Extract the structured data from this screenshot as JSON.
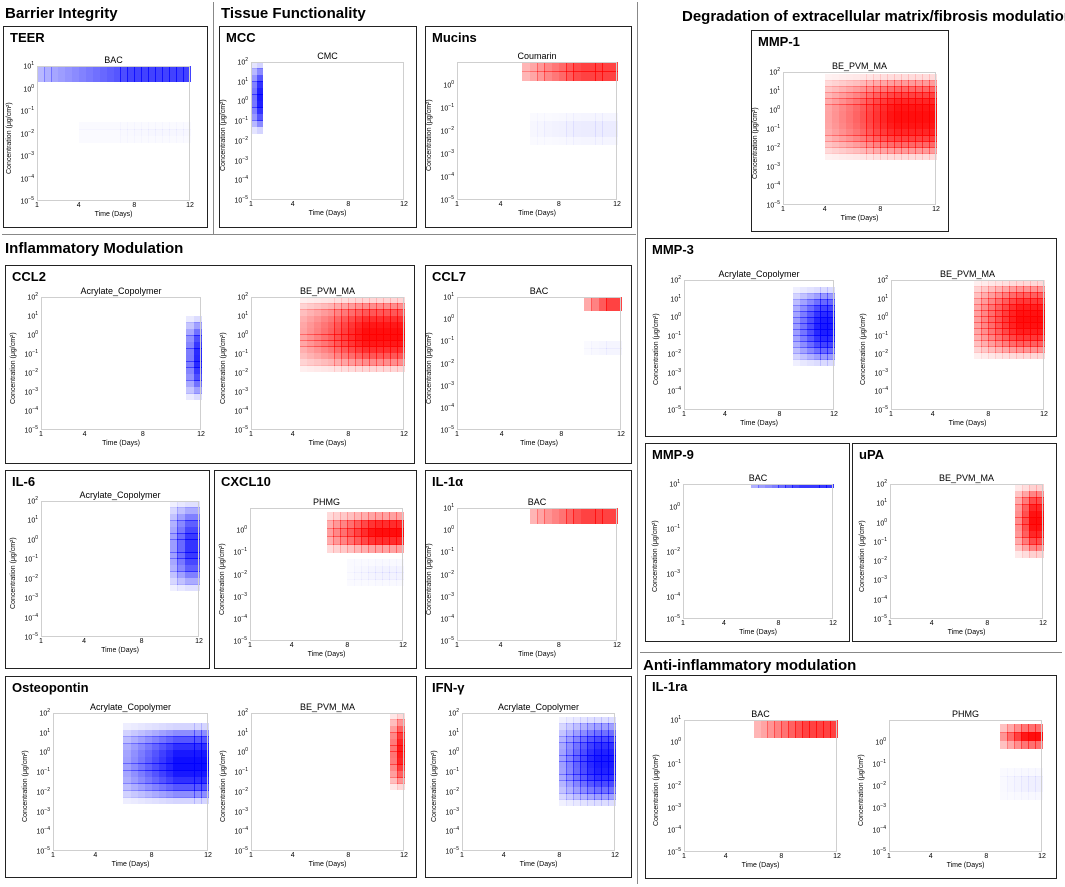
{
  "sections": [
    {
      "id": "barrier",
      "label": "Barrier Integrity"
    },
    {
      "id": "tissue",
      "label": "Tissue Functionality"
    },
    {
      "id": "ecm",
      "label": "Degradation of extracellular matrix/fibrosis modulation"
    },
    {
      "id": "inflam",
      "label": "Inflammatory Modulation"
    },
    {
      "id": "anti",
      "label": "Anti-inflammatory modulation"
    }
  ],
  "boxes": [
    {
      "id": "teer",
      "label": "TEER"
    },
    {
      "id": "mcc",
      "label": "MCC"
    },
    {
      "id": "mucins",
      "label": "Mucins"
    },
    {
      "id": "mmp1",
      "label": "MMP-1"
    },
    {
      "id": "ccl2",
      "label": "CCL2"
    },
    {
      "id": "ccl7",
      "label": "CCL7"
    },
    {
      "id": "mmp3",
      "label": "MMP-3"
    },
    {
      "id": "il6",
      "label": "IL-6"
    },
    {
      "id": "cxcl10",
      "label": "CXCL10"
    },
    {
      "id": "il1a",
      "label": "IL-1α"
    },
    {
      "id": "mmp9",
      "label": "MMP-9"
    },
    {
      "id": "upa",
      "label": "uPA"
    },
    {
      "id": "osteo",
      "label": "Osteopontin"
    },
    {
      "id": "ifng",
      "label": "IFN-γ"
    },
    {
      "id": "il1ra",
      "label": "IL-1ra"
    }
  ],
  "axis_text": {
    "xlabel": "Time (Days)",
    "ylabel": "Concentration (μg/cm²)",
    "x_ticks": [
      "1",
      "4",
      "8",
      "12"
    ]
  },
  "colors": {
    "red": "#ff0000",
    "blue": "#0000ff"
  },
  "chart_data": [
    {
      "type": "heatmap",
      "panel": "TEER",
      "title": "BAC",
      "xlim": [
        1,
        12
      ],
      "ylim_log10": [
        -5,
        1
      ],
      "y_ticks_exp": [
        -5,
        -4,
        -3,
        -2,
        -1,
        0,
        1
      ],
      "regions": [
        {
          "color": "blue",
          "x": [
            1,
            12
          ],
          "y_log10": [
            0.3,
            1
          ],
          "intensity": 0.95
        },
        {
          "color": "blue",
          "x": [
            4,
            12
          ],
          "y_log10": [
            -2.4,
            -1.5
          ],
          "intensity": 0.03
        }
      ]
    },
    {
      "type": "heatmap",
      "panel": "MCC",
      "title": "CMC",
      "xlim": [
        1,
        12
      ],
      "ylim_log10": [
        -5,
        2
      ],
      "y_ticks_exp": [
        -5,
        -4,
        -3,
        -2,
        -1,
        0,
        1,
        2
      ],
      "regions": [
        {
          "color": "blue",
          "x": [
            1,
            1.8
          ],
          "y_log10": [
            -1.6,
            2
          ],
          "intensity": 0.9
        }
      ]
    },
    {
      "type": "heatmap",
      "panel": "Mucins",
      "title": "Coumarin",
      "xlim": [
        1,
        12
      ],
      "ylim_log10": [
        -5,
        1
      ],
      "y_ticks_exp": [
        -5,
        -4,
        -3,
        -2,
        -1,
        0
      ],
      "regions": [
        {
          "color": "red",
          "x": [
            5.5,
            12
          ],
          "y_log10": [
            0.2,
            1
          ],
          "intensity": 0.95
        },
        {
          "color": "blue",
          "x": [
            6,
            12
          ],
          "y_log10": [
            -2.6,
            -1.2
          ],
          "intensity": 0.08
        }
      ]
    },
    {
      "type": "heatmap",
      "panel": "MMP-1",
      "title": "BE_PVM_MA",
      "xlim": [
        1,
        12
      ],
      "ylim_log10": [
        -5,
        2
      ],
      "y_ticks_exp": [
        -5,
        -4,
        -3,
        -2,
        -1,
        0,
        1,
        2
      ],
      "regions": [
        {
          "color": "red",
          "x": [
            4,
            12
          ],
          "y_log10": [
            -2.6,
            1.9
          ],
          "intensity": 0.95
        }
      ]
    },
    {
      "type": "heatmap",
      "panel": "CCL2",
      "title": "Acrylate_Copolymer",
      "xlim": [
        1,
        12
      ],
      "ylim_log10": [
        -5,
        2
      ],
      "y_ticks_exp": [
        -5,
        -4,
        -3,
        -2,
        -1,
        0,
        1,
        2
      ],
      "regions": [
        {
          "color": "blue",
          "x": [
            11,
            12
          ],
          "y_log10": [
            -3.4,
            1
          ],
          "intensity": 0.85
        }
      ]
    },
    {
      "type": "heatmap",
      "panel": "CCL2",
      "title": "BE_PVM_MA",
      "xlim": [
        1,
        12
      ],
      "ylim_log10": [
        -5,
        2
      ],
      "y_ticks_exp": [
        -5,
        -4,
        -3,
        -2,
        -1,
        0,
        1,
        2
      ],
      "regions": [
        {
          "color": "red",
          "x": [
            4.5,
            12
          ],
          "y_log10": [
            -1.9,
            2
          ],
          "intensity": 0.95
        }
      ]
    },
    {
      "type": "heatmap",
      "panel": "CCL7",
      "title": "BAC",
      "xlim": [
        1,
        12
      ],
      "ylim_log10": [
        -5,
        1
      ],
      "y_ticks_exp": [
        -5,
        -4,
        -3,
        -2,
        -1,
        0,
        1
      ],
      "regions": [
        {
          "color": "red",
          "x": [
            9.5,
            12
          ],
          "y_log10": [
            0.4,
            1
          ],
          "intensity": 0.95
        },
        {
          "color": "blue",
          "x": [
            9.5,
            12
          ],
          "y_log10": [
            -1.6,
            -1
          ],
          "intensity": 0.05
        }
      ]
    },
    {
      "type": "heatmap",
      "panel": "MMP-3",
      "title": "Acrylate_Copolymer",
      "xlim": [
        1,
        12
      ],
      "ylim_log10": [
        -5,
        2
      ],
      "y_ticks_exp": [
        -5,
        -4,
        -3,
        -2,
        -1,
        0,
        1,
        2
      ],
      "regions": [
        {
          "color": "blue",
          "x": [
            9,
            12
          ],
          "y_log10": [
            -2.6,
            1.6
          ],
          "intensity": 0.9
        }
      ]
    },
    {
      "type": "heatmap",
      "panel": "MMP-3",
      "title": "BE_PVM_MA",
      "xlim": [
        1,
        12
      ],
      "ylim_log10": [
        -5,
        2
      ],
      "y_ticks_exp": [
        -5,
        -4,
        -3,
        -2,
        -1,
        0,
        1,
        2
      ],
      "regions": [
        {
          "color": "red",
          "x": [
            7,
            12
          ],
          "y_log10": [
            -2.2,
            2
          ],
          "intensity": 0.95
        }
      ]
    },
    {
      "type": "heatmap",
      "panel": "IL-6",
      "title": "Acrylate_Copolymer",
      "xlim": [
        1,
        12
      ],
      "ylim_log10": [
        -5,
        2
      ],
      "y_ticks_exp": [
        -5,
        -4,
        -3,
        -2,
        -1,
        0,
        1,
        2
      ],
      "regions": [
        {
          "color": "blue",
          "x": [
            10,
            12
          ],
          "y_log10": [
            -2.6,
            2
          ],
          "intensity": 0.8
        }
      ]
    },
    {
      "type": "heatmap",
      "panel": "CXCL10",
      "title": "PHMG",
      "xlim": [
        1,
        12
      ],
      "ylim_log10": [
        -5,
        1
      ],
      "y_ticks_exp": [
        -5,
        -4,
        -3,
        -2,
        -1,
        0
      ],
      "regions": [
        {
          "color": "red",
          "x": [
            6.5,
            12
          ],
          "y_log10": [
            -1,
            0.8
          ],
          "intensity": 0.95
        },
        {
          "color": "blue",
          "x": [
            8,
            12
          ],
          "y_log10": [
            -2.5,
            -1.3
          ],
          "intensity": 0.05
        }
      ]
    },
    {
      "type": "heatmap",
      "panel": "IL-1α",
      "title": "BAC",
      "xlim": [
        1,
        12
      ],
      "ylim_log10": [
        -5,
        1
      ],
      "y_ticks_exp": [
        -5,
        -4,
        -3,
        -2,
        -1,
        0,
        1
      ],
      "regions": [
        {
          "color": "red",
          "x": [
            6,
            12
          ],
          "y_log10": [
            0.3,
            1
          ],
          "intensity": 0.95
        }
      ]
    },
    {
      "type": "heatmap",
      "panel": "MMP-9",
      "title": "BAC",
      "xlim": [
        1,
        12
      ],
      "ylim_log10": [
        -5,
        1
      ],
      "y_ticks_exp": [
        -5,
        -4,
        -3,
        -2,
        -1,
        0,
        1
      ],
      "regions": [
        {
          "color": "blue",
          "x": [
            6,
            12
          ],
          "y_log10": [
            0.85,
            1
          ],
          "intensity": 1.0
        }
      ]
    },
    {
      "type": "heatmap",
      "panel": "uPA",
      "title": "BE_PVM_MA",
      "xlim": [
        1,
        12
      ],
      "ylim_log10": [
        -5,
        2
      ],
      "y_ticks_exp": [
        -5,
        -4,
        -3,
        -2,
        -1,
        0,
        1,
        2
      ],
      "regions": [
        {
          "color": "red",
          "x": [
            10,
            12
          ],
          "y_log10": [
            -1.8,
            2
          ],
          "intensity": 0.95
        }
      ]
    },
    {
      "type": "heatmap",
      "panel": "Osteopontin",
      "title": "Acrylate_Copolymer",
      "xlim": [
        1,
        12
      ],
      "ylim_log10": [
        -5,
        2
      ],
      "y_ticks_exp": [
        -5,
        -4,
        -3,
        -2,
        -1,
        0,
        1,
        2
      ],
      "regions": [
        {
          "color": "blue",
          "x": [
            6,
            12
          ],
          "y_log10": [
            -2.6,
            1.5
          ],
          "intensity": 0.95
        }
      ]
    },
    {
      "type": "heatmap",
      "panel": "Osteopontin",
      "title": "BE_PVM_MA",
      "xlim": [
        1,
        12
      ],
      "ylim_log10": [
        -5,
        2
      ],
      "y_ticks_exp": [
        -5,
        -4,
        -3,
        -2,
        -1,
        0,
        1,
        2
      ],
      "regions": [
        {
          "color": "red",
          "x": [
            11,
            12
          ],
          "y_log10": [
            -1.9,
            2
          ],
          "intensity": 0.9
        }
      ]
    },
    {
      "type": "heatmap",
      "panel": "IFN-γ",
      "title": "Acrylate_Copolymer",
      "xlim": [
        1,
        12
      ],
      "ylim_log10": [
        -5,
        2
      ],
      "y_ticks_exp": [
        -5,
        -4,
        -3,
        -2,
        -1,
        0,
        1,
        2
      ],
      "regions": [
        {
          "color": "blue",
          "x": [
            8,
            12
          ],
          "y_log10": [
            -2.7,
            1.8
          ],
          "intensity": 0.9
        }
      ]
    },
    {
      "type": "heatmap",
      "panel": "IL-1ra",
      "title": "BAC",
      "xlim": [
        1,
        12
      ],
      "ylim_log10": [
        -5,
        1
      ],
      "y_ticks_exp": [
        -5,
        -4,
        -3,
        -2,
        -1,
        0,
        1
      ],
      "regions": [
        {
          "color": "red",
          "x": [
            6,
            12
          ],
          "y_log10": [
            0.2,
            1
          ],
          "intensity": 0.95
        }
      ]
    },
    {
      "type": "heatmap",
      "panel": "IL-1ra",
      "title": "PHMG",
      "xlim": [
        1,
        12
      ],
      "ylim_log10": [
        -5,
        1
      ],
      "y_ticks_exp": [
        -5,
        -4,
        -3,
        -2,
        -1,
        0
      ],
      "regions": [
        {
          "color": "red",
          "x": [
            9,
            12
          ],
          "y_log10": [
            -0.3,
            0.8
          ],
          "intensity": 0.95
        },
        {
          "color": "blue",
          "x": [
            9,
            12
          ],
          "y_log10": [
            -2.6,
            -1.2
          ],
          "intensity": 0.06
        }
      ]
    }
  ]
}
